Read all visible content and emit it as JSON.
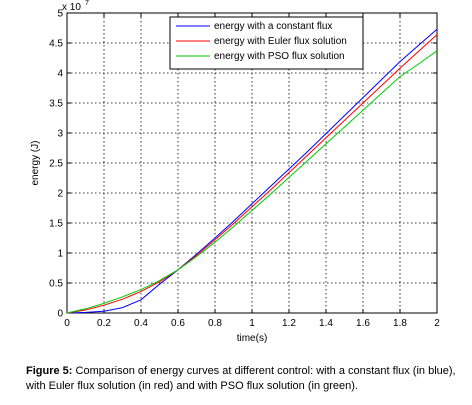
{
  "chart_data": {
    "type": "line",
    "xlabel": "time(s)",
    "ylabel": "energy (J)",
    "y_exponent_label": "x 10",
    "y_exponent_power": "7",
    "xlim": [
      0,
      2
    ],
    "ylim": [
      0,
      5
    ],
    "x_ticks": [
      "0",
      "0.2",
      "0.4",
      "0.6",
      "0.8",
      "1",
      "1.2",
      "1.4",
      "1.6",
      "1.8",
      "2"
    ],
    "y_ticks": [
      "0",
      "0.5",
      "1",
      "1.5",
      "2",
      "2.5",
      "3",
      "3.5",
      "4",
      "4.5",
      "5"
    ],
    "grid": true,
    "legend_position": "top-right",
    "x": [
      0,
      0.1,
      0.2,
      0.3,
      0.4,
      0.5,
      0.6,
      0.7,
      0.8,
      0.9,
      1.0,
      1.1,
      1.2,
      1.3,
      1.4,
      1.5,
      1.6,
      1.7,
      1.8,
      1.9,
      2.0
    ],
    "series": [
      {
        "name": "energy with a constant flux",
        "color": "#0000ff",
        "values": [
          0,
          0.01,
          0.03,
          0.09,
          0.22,
          0.48,
          0.72,
          0.98,
          1.25,
          1.53,
          1.82,
          2.11,
          2.4,
          2.69,
          2.99,
          3.29,
          3.59,
          3.89,
          4.19,
          4.46,
          4.73
        ]
      },
      {
        "name": "energy with Euler flux solution",
        "color": "#ff0000",
        "values": [
          0,
          0.05,
          0.13,
          0.23,
          0.36,
          0.52,
          0.72,
          0.96,
          1.22,
          1.49,
          1.77,
          2.05,
          2.34,
          2.63,
          2.92,
          3.21,
          3.5,
          3.79,
          4.08,
          4.36,
          4.64
        ]
      },
      {
        "name": "energy with PSO flux solution",
        "color": "#00cc00",
        "values": [
          0,
          0.07,
          0.16,
          0.27,
          0.39,
          0.54,
          0.72,
          0.94,
          1.18,
          1.44,
          1.71,
          1.98,
          2.26,
          2.54,
          2.82,
          3.1,
          3.38,
          3.66,
          3.94,
          4.15,
          4.37
        ]
      }
    ]
  },
  "caption": {
    "label": "Figure 5:",
    "text": " Comparison of energy curves at different control: with a constant flux (in blue), with Euler flux solution (in red) and with PSO flux solution (in green)."
  }
}
